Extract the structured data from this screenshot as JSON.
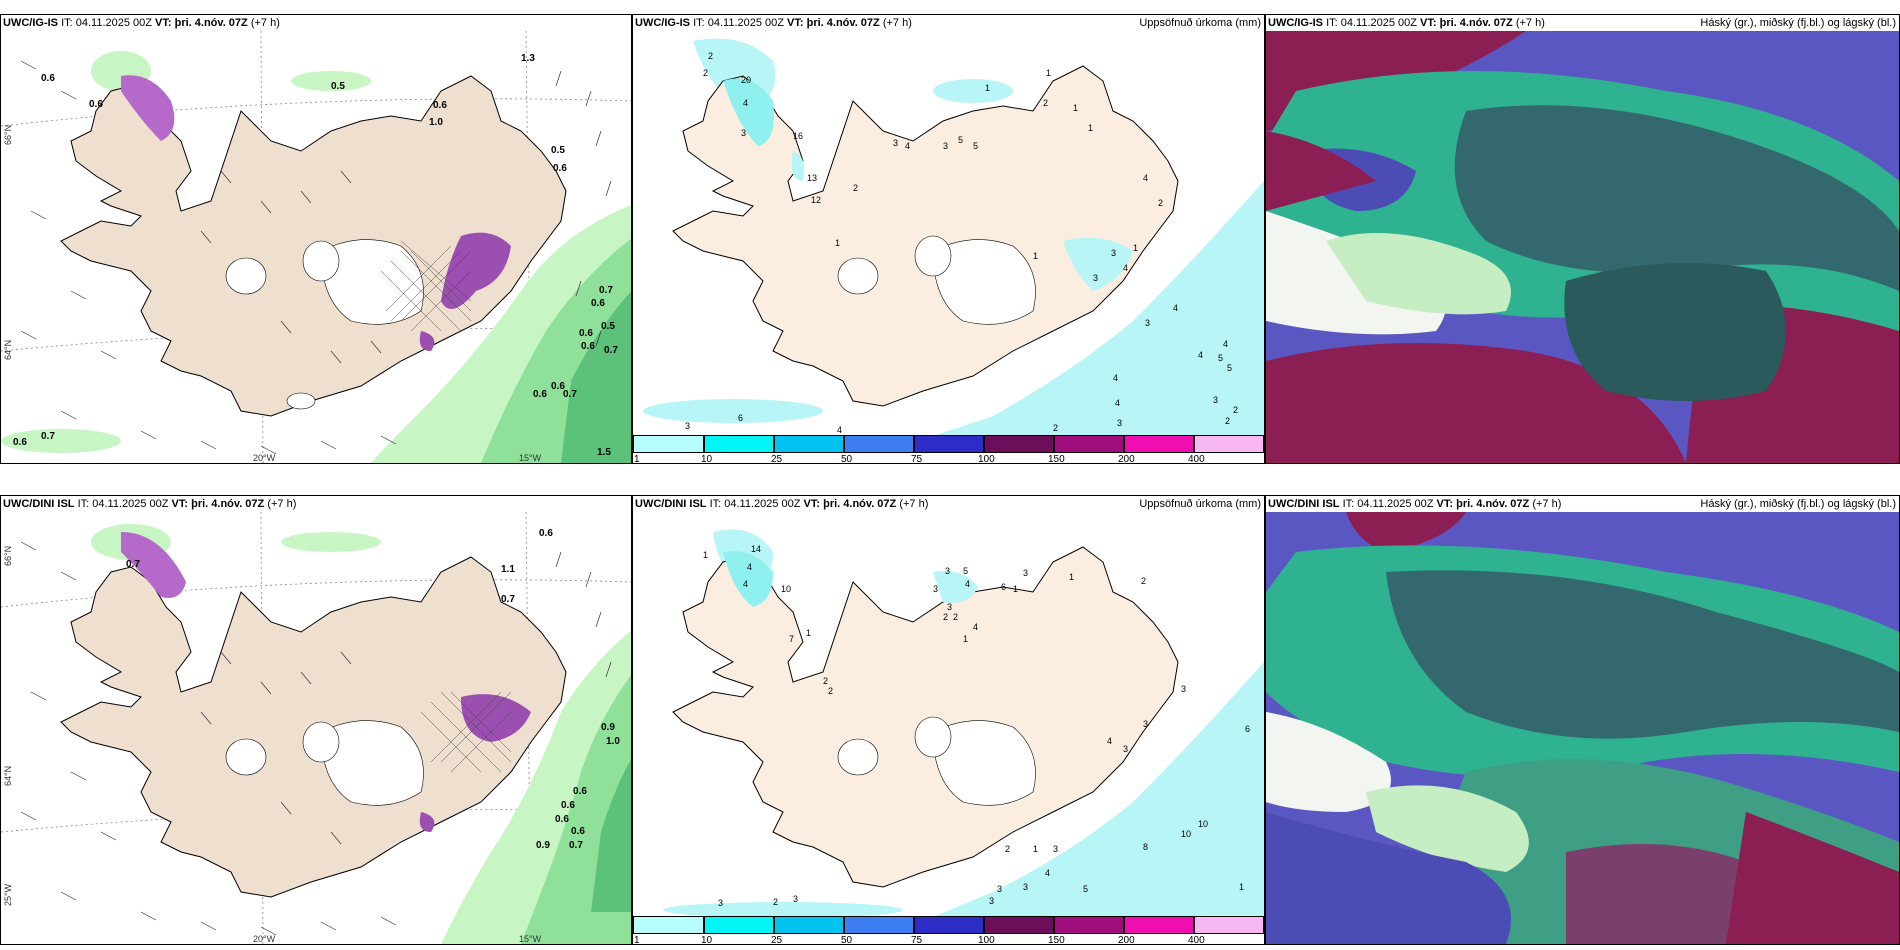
{
  "rows": [
    {
      "model": "UWC/IG-IS",
      "it": "IT: 04.11.2025 00Z",
      "vt_label": "VT:",
      "vt": "þri. 4.nóv. 07Z",
      "lead": "(+7 h)"
    },
    {
      "model": "UWC/DINI ISL",
      "it": "IT: 04.11.2025 00Z",
      "vt_label": "VT:",
      "vt": "þri. 4.nóv. 07Z",
      "lead": "(+7 h)"
    }
  ],
  "precip_title": "Uppsöfnuð úrkoma (mm)",
  "cloud_title": "Háský (gr.), miðský (fj.bl.) og lágský (bl.)",
  "axis": {
    "lat_top": "66°N",
    "lat_bottom": "64°N",
    "lon_left": "20°W",
    "lon_right": "15°W",
    "lon_far_left": "25°W"
  },
  "legend": {
    "levels": [
      "1",
      "10",
      "25",
      "50",
      "75",
      "100",
      "150",
      "200",
      "400"
    ],
    "colors": [
      "#b8fdfd",
      "#00f5f5",
      "#00c3f0",
      "#3c7ef2",
      "#2e2cc6",
      "#6d0e5b",
      "#a00d7c",
      "#ef0fb0",
      "#f6b7f3"
    ]
  },
  "wind_labels_top": [
    "0.6",
    "0.5",
    "0.6",
    "1.0",
    "0.6",
    "0.7",
    "0.6",
    "0.5",
    "0.6",
    "0.7",
    "0.6",
    "0.5",
    "0.6",
    "0.7",
    "0.6",
    "0.6",
    "0.6",
    "0.7",
    "1.3",
    "1.5"
  ],
  "wind_labels_bottom": [
    "0.6",
    "0.7",
    "0.9",
    "1.0",
    "0.6",
    "0.6",
    "0.6",
    "0.6",
    "0.7",
    "0.9",
    "1.1",
    "0.7"
  ],
  "precip_labels_top": [
    "2",
    "2",
    "20",
    "4",
    "3",
    "16",
    "13",
    "12",
    "2",
    "1",
    "3",
    "4",
    "3",
    "5",
    "1",
    "2",
    "1",
    "1",
    "4",
    "3",
    "4",
    "1",
    "2",
    "4",
    "3",
    "3",
    "1",
    "4",
    "4",
    "5",
    "5",
    "4",
    "4",
    "3",
    "2",
    "2",
    "3",
    "2",
    "6",
    "4",
    "3",
    "1",
    "5"
  ],
  "precip_labels_bottom": [
    "1",
    "14",
    "4",
    "4",
    "10",
    "7",
    "1",
    "2",
    "2",
    "3",
    "4",
    "5",
    "6",
    "3",
    "3",
    "1",
    "1",
    "3",
    "2",
    "2",
    "4",
    "1",
    "2",
    "3",
    "3",
    "4",
    "3",
    "6",
    "10",
    "10",
    "8",
    "2",
    "1",
    "3",
    "4",
    "3",
    "3",
    "5",
    "1",
    "3",
    "3",
    "2",
    "3"
  ]
}
